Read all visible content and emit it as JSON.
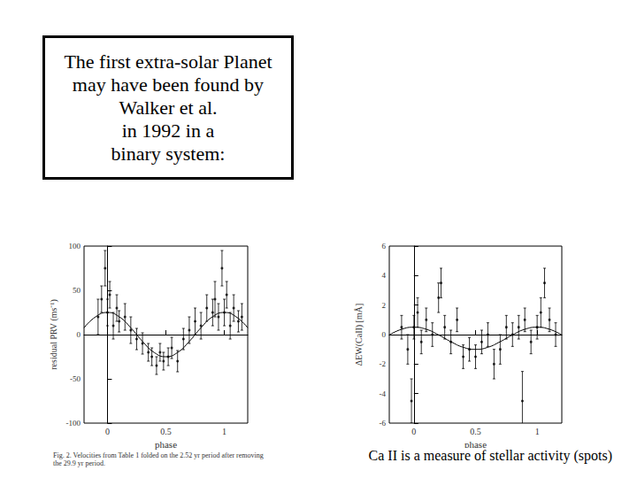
{
  "title_box": {
    "lines": [
      "The first extra-solar Planet",
      "may have been found by",
      "Walker et al.",
      "in 1992  in a",
      "binary system:"
    ]
  },
  "note": "Ca II is a measure of stellar activity (spots)",
  "chart_data": [
    {
      "type": "scatter",
      "caption": "Fig. 2. Velocities from Table 1 folded on the 2.52 yr period after removing the 29.9 yr period.",
      "x_label": "phase",
      "y_label": "residual PRV (ms⁻¹)",
      "xlim": [
        -0.2,
        1.2
      ],
      "xticks": [
        0,
        0.5,
        1
      ],
      "ylim": [
        -100,
        100
      ],
      "yticks": [
        -100,
        -50,
        0,
        50,
        100
      ],
      "grid": false,
      "series": [
        {
          "type": "scatter",
          "color": "#000000",
          "marker": "circle",
          "x": [
            -0.08,
            -0.05,
            -0.02,
            0.0,
            0.02,
            0.05,
            0.08,
            0.1,
            0.15,
            0.2,
            0.25,
            0.3,
            0.35,
            0.38,
            0.42,
            0.45,
            0.48,
            0.52,
            0.55,
            0.6,
            0.65,
            0.7,
            0.75,
            0.8,
            0.85,
            0.9,
            0.92,
            0.95,
            0.98,
            1.0,
            1.02,
            1.05,
            1.08,
            1.12,
            1.15
          ],
          "values": [
            20,
            40,
            75,
            25,
            45,
            10,
            30,
            15,
            20,
            5,
            -5,
            -10,
            -20,
            -25,
            -35,
            -20,
            -30,
            -25,
            -15,
            -30,
            -5,
            5,
            15,
            10,
            30,
            25,
            40,
            20,
            75,
            25,
            45,
            10,
            30,
            15,
            20
          ],
          "errors": [
            20,
            15,
            20,
            15,
            15,
            15,
            15,
            12,
            15,
            15,
            12,
            12,
            10,
            10,
            10,
            10,
            10,
            10,
            12,
            12,
            12,
            15,
            15,
            15,
            15,
            15,
            20,
            15,
            20,
            15,
            15,
            15,
            15,
            12,
            15
          ]
        },
        {
          "type": "line",
          "color": "#000000",
          "line_style": "solid",
          "x": [
            -0.2,
            -0.1,
            0.0,
            0.1,
            0.2,
            0.3,
            0.4,
            0.5,
            0.6,
            0.7,
            0.8,
            0.9,
            1.0,
            1.1,
            1.2
          ],
          "values": [
            7.7,
            20.2,
            25,
            20.2,
            7.7,
            -7.7,
            -20.2,
            -25,
            -20.2,
            -7.7,
            7.7,
            20.2,
            25,
            20.2,
            7.7
          ]
        }
      ]
    },
    {
      "type": "scatter",
      "x_label": "phase",
      "y_label": "ΔEW(CaII) [mÅ]",
      "xlim": [
        -0.2,
        1.2
      ],
      "xticks": [
        0,
        0.5,
        1
      ],
      "ylim": [
        -6,
        6
      ],
      "yticks": [
        -6,
        -4,
        -2,
        0,
        2,
        4,
        6
      ],
      "grid": false,
      "series": [
        {
          "type": "scatter",
          "color": "#000000",
          "marker": "circle",
          "x": [
            -0.1,
            -0.05,
            -0.02,
            0.0,
            0.03,
            0.06,
            0.1,
            0.15,
            0.2,
            0.22,
            0.25,
            0.3,
            0.35,
            0.4,
            0.45,
            0.5,
            0.55,
            0.6,
            0.65,
            0.7,
            0.75,
            0.8,
            0.85,
            0.88,
            0.9,
            0.95,
            1.0,
            1.03,
            1.06,
            1.1,
            1.15
          ],
          "values": [
            0.5,
            -1.0,
            -4.5,
            0.5,
            1.5,
            -0.5,
            1.0,
            0.0,
            2.5,
            3.5,
            0.5,
            -0.5,
            1.0,
            -1.5,
            -1.0,
            -1.5,
            -0.5,
            0.0,
            -2.0,
            -1.0,
            0.5,
            0.0,
            0.5,
            -4.5,
            1.0,
            -0.5,
            0.5,
            1.5,
            3.5,
            1.0,
            0.0
          ],
          "errors": [
            0.8,
            1.0,
            1.5,
            0.8,
            1.0,
            0.8,
            0.8,
            0.8,
            1.0,
            1.0,
            0.8,
            0.8,
            0.8,
            0.8,
            0.8,
            0.8,
            0.8,
            0.8,
            1.0,
            1.0,
            0.8,
            0.8,
            0.8,
            2.0,
            0.8,
            0.8,
            0.8,
            1.0,
            1.0,
            0.8,
            0.8
          ]
        },
        {
          "type": "line",
          "color": "#000000",
          "line_style": "solid",
          "x": [
            -0.2,
            -0.1,
            0.0,
            0.1,
            0.2,
            0.3,
            0.4,
            0.5,
            0.6,
            0.7,
            0.8,
            0.9,
            1.0,
            1.1,
            1.2
          ],
          "values": [
            -0.02,
            0.36,
            0.5,
            0.36,
            -0.02,
            -0.48,
            -0.86,
            -1.0,
            -0.86,
            -0.48,
            -0.02,
            0.36,
            0.5,
            0.36,
            -0.02
          ]
        }
      ]
    }
  ]
}
